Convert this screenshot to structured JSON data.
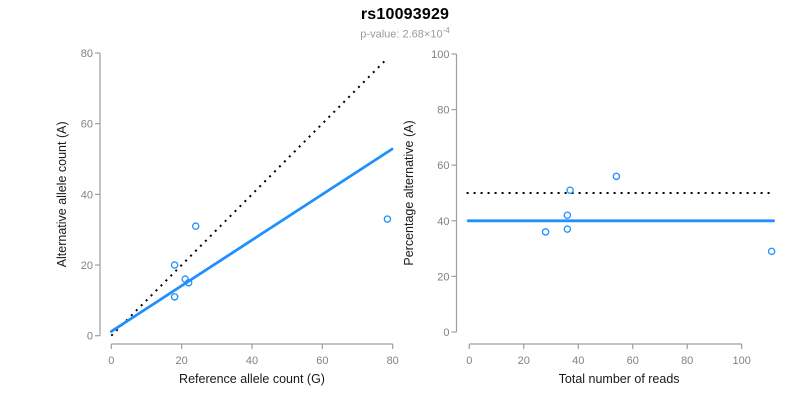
{
  "title": "rs10093929",
  "subtitle": {
    "text": "p-value: 2.68×10",
    "exponent": "-4"
  },
  "colors": {
    "accent_blue": "#1E90FF",
    "dotted_black": "#000000",
    "axis_line_gray": "#9e9e9e",
    "tick_label_gray": "#828282",
    "axis_title_black": "#1a1a1a",
    "subtitle_gray": "#9a9a9a"
  },
  "chart_data": [
    {
      "type": "scatter",
      "panel": "left",
      "xlabel": "Reference allele count (G)",
      "ylabel": "Alternative allele count (A)",
      "xlim": [
        0,
        80
      ],
      "ylim": [
        0,
        80
      ],
      "xticks": [
        0,
        20,
        40,
        60,
        80
      ],
      "yticks": [
        0,
        20,
        40,
        60,
        80
      ],
      "grid": false,
      "points": [
        [
          18,
          20
        ],
        [
          18,
          11
        ],
        [
          21,
          16
        ],
        [
          22,
          15
        ],
        [
          24,
          31
        ],
        [
          78.5,
          33
        ]
      ],
      "lines": [
        {
          "name": "identity-line",
          "style": "dotted",
          "color": "#000000",
          "x1": 0,
          "y1": 0,
          "x2": 78.5,
          "y2": 78.5
        },
        {
          "name": "fit-line",
          "style": "solid",
          "color": "#1E90FF",
          "x1": 0,
          "y1": 1.2,
          "x2": 79.8,
          "y2": 52.8
        }
      ]
    },
    {
      "type": "scatter",
      "panel": "right",
      "xlabel": "Total number of reads",
      "ylabel": "Percentage alternative (A)",
      "xlim": [
        0,
        110
      ],
      "ylim": [
        0,
        100
      ],
      "xticks": [
        0,
        20,
        40,
        60,
        80,
        100
      ],
      "yticks": [
        0,
        20,
        40,
        60,
        80,
        100
      ],
      "grid": false,
      "points": [
        [
          28,
          36
        ],
        [
          36,
          37
        ],
        [
          36,
          42
        ],
        [
          37,
          51
        ],
        [
          54,
          56
        ],
        [
          111,
          29
        ]
      ],
      "lines": [
        {
          "name": "reference-50pct-line",
          "style": "dotted",
          "color": "#000000",
          "x1": -1,
          "y1": 50,
          "x2": 110.5,
          "y2": 50
        },
        {
          "name": "fit-line",
          "style": "solid",
          "color": "#1E90FF",
          "x1": -0.4,
          "y1": 40,
          "x2": 111.7,
          "y2": 40
        }
      ]
    }
  ]
}
